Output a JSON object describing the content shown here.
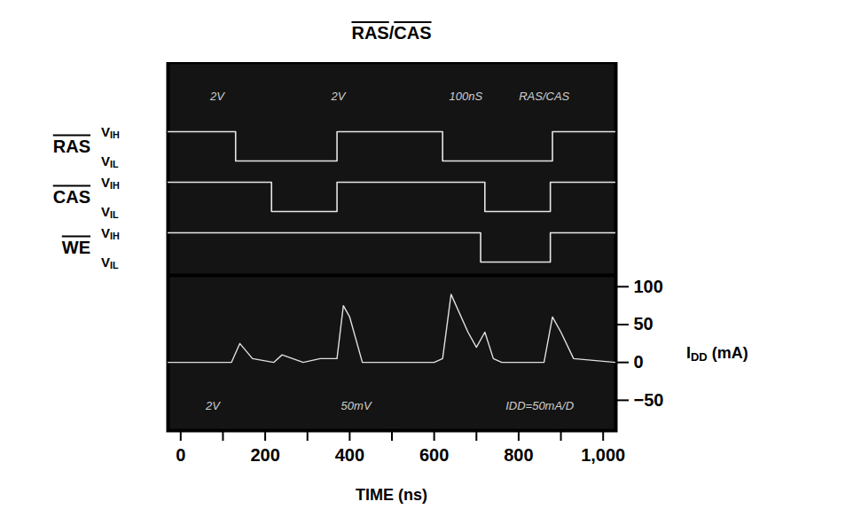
{
  "chart_data": {
    "type": "line",
    "title": "RAS/CAS",
    "xlabel": "TIME (ns)",
    "ylabel": "IDD (mA)",
    "xlim": [
      -30,
      1030
    ],
    "xticks": [
      0,
      200,
      400,
      600,
      800,
      1000
    ],
    "ylim": [
      -90,
      115
    ],
    "yticks": [
      -50,
      0,
      50,
      100
    ],
    "grid": false,
    "x": [
      -30,
      120,
      140,
      170,
      220,
      240,
      290,
      330,
      370,
      385,
      400,
      430,
      600,
      620,
      640,
      680,
      700,
      720,
      740,
      760,
      860,
      880,
      900,
      930,
      1030
    ],
    "values": [
      0,
      0,
      25,
      5,
      0,
      10,
      0,
      5,
      5,
      75,
      60,
      0,
      0,
      5,
      90,
      40,
      20,
      40,
      5,
      0,
      0,
      60,
      40,
      5,
      0
    ],
    "color": "#e0e0e0",
    "level_labels": [
      "VIH",
      "VIL"
    ],
    "signals": [
      {
        "name": "RAS",
        "color": "#e6e6e6",
        "x": [
          -30,
          130,
          370,
          620,
          880,
          1030
        ],
        "levels": [
          "VIH",
          "VIL",
          "VIH",
          "VIL",
          "VIH",
          "VIH"
        ]
      },
      {
        "name": "CAS",
        "color": "#e6e6e6",
        "x": [
          -30,
          215,
          370,
          720,
          875,
          1030
        ],
        "levels": [
          "VIH",
          "VIL",
          "VIH",
          "VIL",
          "VIH",
          "VIH"
        ]
      },
      {
        "name": "WE",
        "color": "#e6e6e6",
        "x": [
          -30,
          710,
          875,
          1030
        ],
        "levels": [
          "VIH",
          "VIL",
          "VIH",
          "VIH"
        ]
      }
    ],
    "annotations": {
      "top": [
        "2V",
        "2V",
        "100nS",
        "RAS/CAS"
      ],
      "bottom": [
        "2V",
        "50mV",
        "IDD=50mA/D"
      ]
    }
  }
}
